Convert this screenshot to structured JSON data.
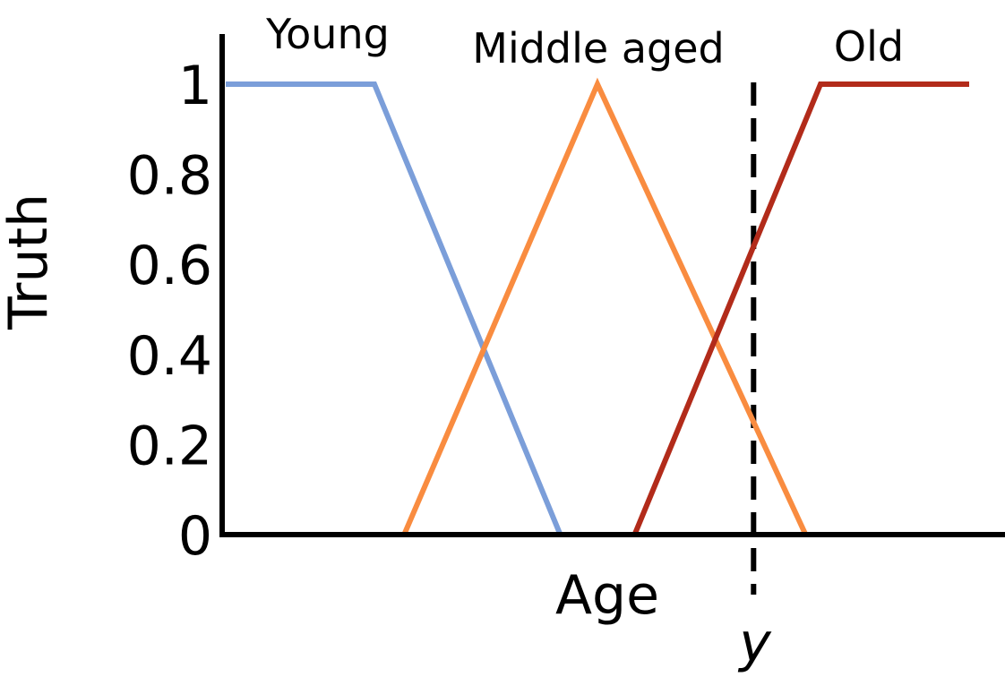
{
  "chart_data": {
    "type": "line",
    "title": "",
    "xlabel": "Age",
    "ylabel": "Truth",
    "xlim": [
      0,
      100
    ],
    "ylim": [
      0,
      1
    ],
    "yticks": [
      "0",
      "0.2",
      "0.4",
      "0.6",
      "0.8",
      "1"
    ],
    "ytick_values": [
      0,
      0.2,
      0.4,
      0.6,
      0.8,
      1
    ],
    "grid": false,
    "series": [
      {
        "name": "Young",
        "color": "#7b9ed9",
        "points": [
          [
            0,
            1
          ],
          [
            20,
            1
          ],
          [
            45,
            0
          ]
        ]
      },
      {
        "name": "Middle aged",
        "color": "#f98c40",
        "points": [
          [
            24,
            0
          ],
          [
            50,
            1
          ],
          [
            78,
            0
          ]
        ]
      },
      {
        "name": "Old",
        "color": "#b22b1a",
        "points": [
          [
            55,
            0
          ],
          [
            80,
            1
          ],
          [
            100,
            1
          ]
        ]
      }
    ],
    "marker": {
      "label": "y",
      "x": 71,
      "style": "dashed"
    }
  }
}
